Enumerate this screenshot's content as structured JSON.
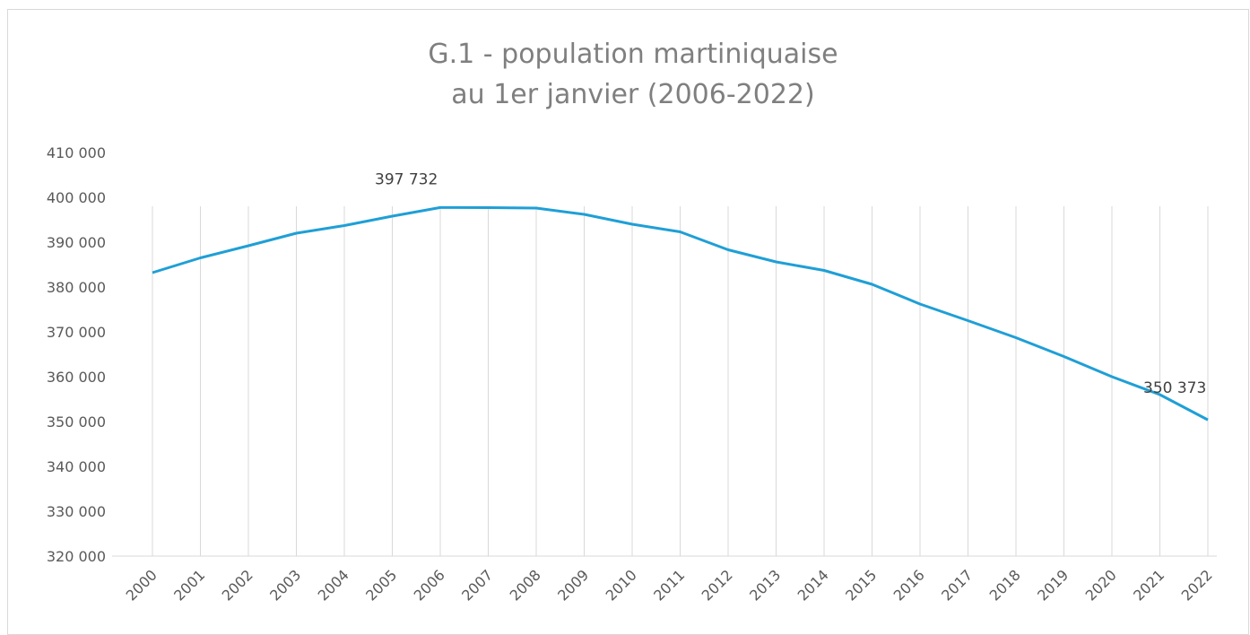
{
  "chart_data": {
    "type": "line",
    "title_lines": [
      "G.1 - population martiniquaise",
      "au 1er janvier (2006-2022)"
    ],
    "categories": [
      "2000",
      "2001",
      "2002",
      "2003",
      "2004",
      "2005",
      "2006",
      "2007",
      "2008",
      "2009",
      "2010",
      "2011",
      "2012",
      "2013",
      "2014",
      "2015",
      "2016",
      "2017",
      "2018",
      "2019",
      "2020",
      "2021",
      "2022"
    ],
    "series": [
      {
        "color": "#1f9fd6",
        "values": [
          383200,
          386500,
          389200,
          392000,
          393700,
          395800,
          397732,
          397700,
          397600,
          396200,
          394000,
          392300,
          388300,
          385600,
          383700,
          380600,
          376200,
          372500,
          368700,
          364500,
          360000,
          356000,
          350373
        ],
        "value_labels": [
          null,
          null,
          null,
          null,
          null,
          null,
          "397 732",
          null,
          null,
          null,
          null,
          null,
          null,
          null,
          null,
          null,
          null,
          null,
          null,
          null,
          null,
          null,
          "350 373"
        ]
      }
    ],
    "ylim": [
      320000,
      410000
    ],
    "yticks": [
      {
        "value": 320000,
        "label": "320 000"
      },
      {
        "value": 330000,
        "label": "330 000"
      },
      {
        "value": 340000,
        "label": "340 000"
      },
      {
        "value": 350000,
        "label": "350 000"
      },
      {
        "value": 360000,
        "label": "360 000"
      },
      {
        "value": 370000,
        "label": "370 000"
      },
      {
        "value": 380000,
        "label": "380 000"
      },
      {
        "value": 390000,
        "label": "390 000"
      },
      {
        "value": 400000,
        "label": "400 000"
      },
      {
        "value": 410000,
        "label": "410 000"
      }
    ],
    "grid": "vertical"
  }
}
